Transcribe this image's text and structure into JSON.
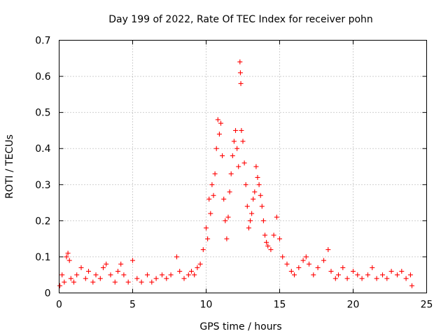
{
  "chart_data": {
    "type": "scatter",
    "title": "Day 199 of 2022, Rate Of TEC Index for receiver pohn",
    "xlabel": "GPS time / hours",
    "ylabel": "ROTI / TECUs",
    "xlim": [
      0,
      25
    ],
    "ylim": [
      0,
      0.7
    ],
    "xticks": [
      0,
      5,
      10,
      15,
      20,
      25
    ],
    "xtick_labels": [
      "0",
      "5",
      "10",
      "15",
      "20",
      "25"
    ],
    "yticks": [
      0,
      0.1,
      0.2,
      0.3,
      0.4,
      0.5,
      0.6,
      0.7
    ],
    "ytick_labels": [
      "0",
      "0.1",
      "0.2",
      "0.3",
      "0.4",
      "0.5",
      "0.6",
      "0.7"
    ],
    "grid": true,
    "marker": "+",
    "color": "#ff0000",
    "series": [
      {
        "name": "ROTI",
        "points": [
          [
            0.05,
            0.02
          ],
          [
            0.2,
            0.05
          ],
          [
            0.35,
            0.03
          ],
          [
            0.5,
            0.1
          ],
          [
            0.6,
            0.11
          ],
          [
            0.7,
            0.09
          ],
          [
            0.8,
            0.04
          ],
          [
            1.0,
            0.03
          ],
          [
            1.2,
            0.05
          ],
          [
            1.5,
            0.07
          ],
          [
            1.8,
            0.04
          ],
          [
            2.0,
            0.06
          ],
          [
            2.3,
            0.03
          ],
          [
            2.5,
            0.05
          ],
          [
            2.8,
            0.04
          ],
          [
            3.0,
            0.07
          ],
          [
            3.2,
            0.08
          ],
          [
            3.5,
            0.05
          ],
          [
            3.8,
            0.03
          ],
          [
            4.0,
            0.06
          ],
          [
            4.2,
            0.08
          ],
          [
            4.4,
            0.05
          ],
          [
            4.7,
            0.03
          ],
          [
            5.0,
            0.09
          ],
          [
            5.3,
            0.04
          ],
          [
            5.6,
            0.03
          ],
          [
            6.0,
            0.05
          ],
          [
            6.3,
            0.03
          ],
          [
            6.6,
            0.04
          ],
          [
            7.0,
            0.05
          ],
          [
            7.3,
            0.04
          ],
          [
            7.6,
            0.05
          ],
          [
            8.0,
            0.1
          ],
          [
            8.2,
            0.06
          ],
          [
            8.5,
            0.04
          ],
          [
            8.8,
            0.05
          ],
          [
            9.0,
            0.06
          ],
          [
            9.2,
            0.05
          ],
          [
            9.4,
            0.07
          ],
          [
            9.6,
            0.08
          ],
          [
            9.8,
            0.12
          ],
          [
            10.0,
            0.18
          ],
          [
            10.1,
            0.15
          ],
          [
            10.2,
            0.26
          ],
          [
            10.3,
            0.22
          ],
          [
            10.4,
            0.3
          ],
          [
            10.5,
            0.27
          ],
          [
            10.6,
            0.33
          ],
          [
            10.7,
            0.4
          ],
          [
            10.8,
            0.48
          ],
          [
            10.9,
            0.44
          ],
          [
            11.0,
            0.47
          ],
          [
            11.1,
            0.38
          ],
          [
            11.2,
            0.26
          ],
          [
            11.3,
            0.2
          ],
          [
            11.4,
            0.15
          ],
          [
            11.5,
            0.21
          ],
          [
            11.6,
            0.28
          ],
          [
            11.7,
            0.33
          ],
          [
            11.8,
            0.38
          ],
          [
            11.9,
            0.42
          ],
          [
            12.0,
            0.45
          ],
          [
            12.1,
            0.4
          ],
          [
            12.2,
            0.35
          ],
          [
            12.3,
            0.64
          ],
          [
            12.33,
            0.61
          ],
          [
            12.36,
            0.58
          ],
          [
            12.4,
            0.45
          ],
          [
            12.5,
            0.42
          ],
          [
            12.6,
            0.36
          ],
          [
            12.7,
            0.3
          ],
          [
            12.8,
            0.24
          ],
          [
            12.9,
            0.18
          ],
          [
            13.0,
            0.2
          ],
          [
            13.1,
            0.22
          ],
          [
            13.2,
            0.26
          ],
          [
            13.3,
            0.28
          ],
          [
            13.4,
            0.35
          ],
          [
            13.5,
            0.32
          ],
          [
            13.6,
            0.3
          ],
          [
            13.7,
            0.27
          ],
          [
            13.8,
            0.24
          ],
          [
            13.9,
            0.2
          ],
          [
            14.0,
            0.16
          ],
          [
            14.1,
            0.14
          ],
          [
            14.2,
            0.13
          ],
          [
            14.4,
            0.12
          ],
          [
            14.6,
            0.16
          ],
          [
            14.8,
            0.21
          ],
          [
            15.0,
            0.15
          ],
          [
            15.2,
            0.1
          ],
          [
            15.5,
            0.08
          ],
          [
            15.8,
            0.06
          ],
          [
            16.0,
            0.05
          ],
          [
            16.3,
            0.07
          ],
          [
            16.6,
            0.09
          ],
          [
            16.8,
            0.1
          ],
          [
            17.0,
            0.08
          ],
          [
            17.3,
            0.05
          ],
          [
            17.6,
            0.07
          ],
          [
            18.0,
            0.09
          ],
          [
            18.3,
            0.12
          ],
          [
            18.5,
            0.06
          ],
          [
            18.8,
            0.04
          ],
          [
            19.0,
            0.05
          ],
          [
            19.3,
            0.07
          ],
          [
            19.6,
            0.04
          ],
          [
            20.0,
            0.06
          ],
          [
            20.3,
            0.05
          ],
          [
            20.6,
            0.04
          ],
          [
            21.0,
            0.05
          ],
          [
            21.3,
            0.07
          ],
          [
            21.6,
            0.04
          ],
          [
            22.0,
            0.05
          ],
          [
            22.3,
            0.04
          ],
          [
            22.6,
            0.06
          ],
          [
            23.0,
            0.05
          ],
          [
            23.3,
            0.06
          ],
          [
            23.6,
            0.04
          ],
          [
            23.9,
            0.05
          ],
          [
            24.0,
            0.02
          ]
        ]
      }
    ]
  }
}
